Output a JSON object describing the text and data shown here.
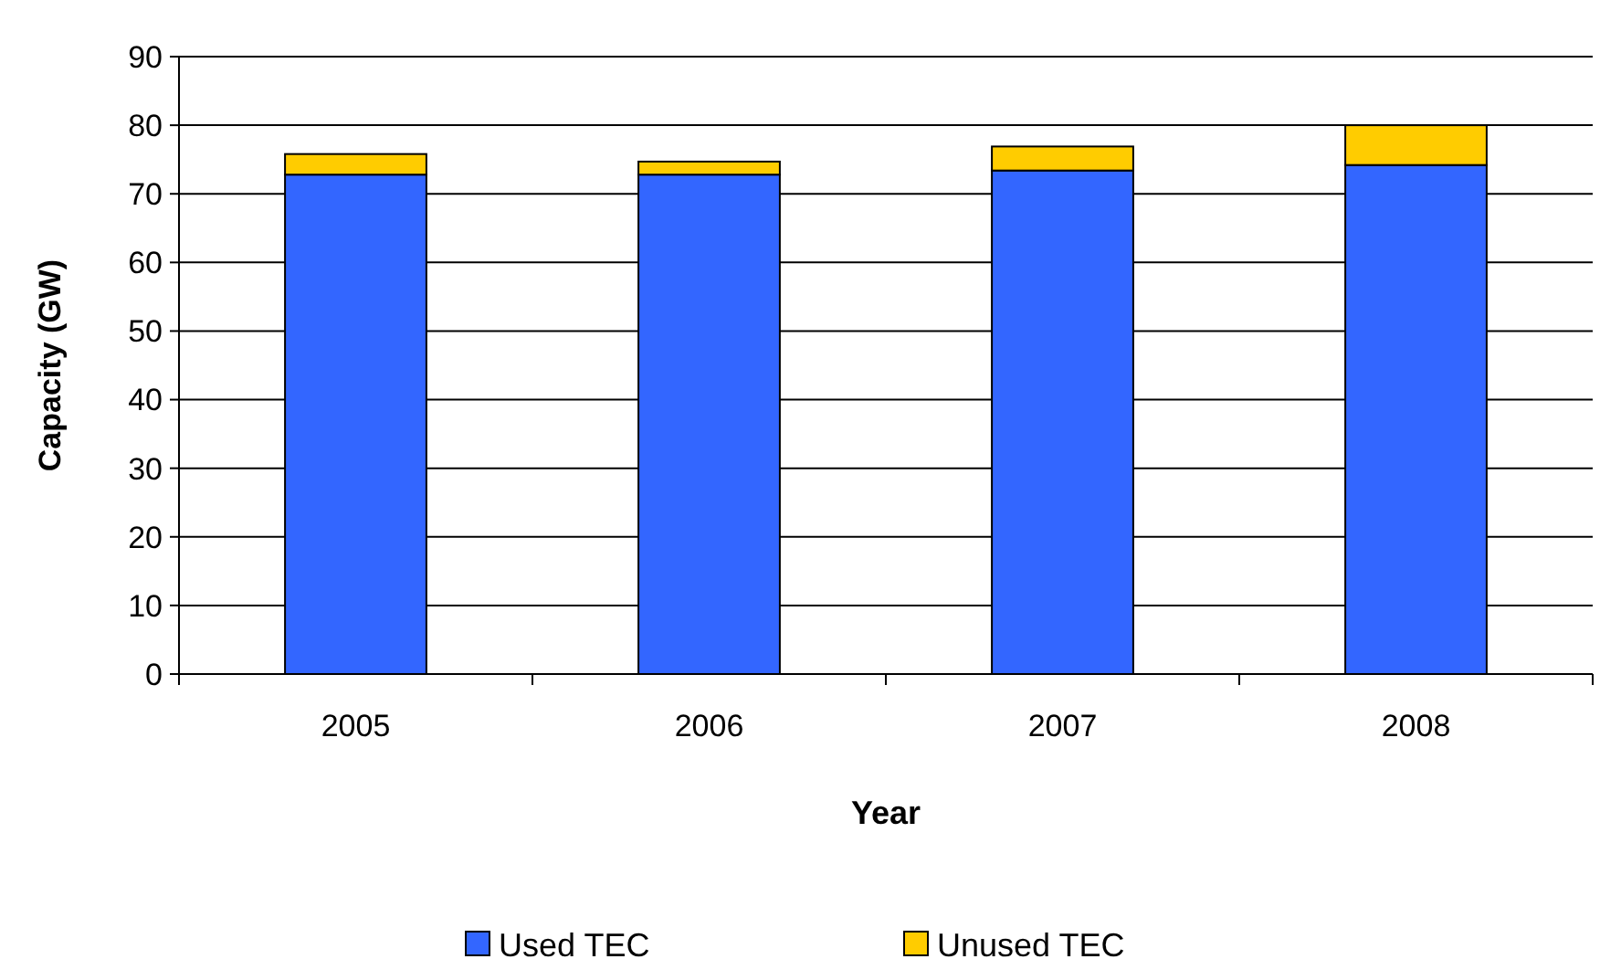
{
  "chart_data": {
    "type": "bar",
    "stacked": true,
    "xlabel": "Year",
    "ylabel": "Capacity (GW)",
    "categories": [
      "2005",
      "2006",
      "2007",
      "2008"
    ],
    "series": [
      {
        "name": "Used TEC",
        "color": "#3366ff",
        "values": [
          72.8,
          72.8,
          73.4,
          74.2
        ]
      },
      {
        "name": "Unused TEC",
        "color": "#ffcc00",
        "values": [
          3.0,
          1.9,
          3.5,
          5.8
        ]
      }
    ],
    "ylim": [
      0,
      90
    ],
    "yticks": [
      0,
      10,
      20,
      30,
      40,
      50,
      60,
      70,
      80,
      90
    ],
    "grid": "y",
    "legend": "bottom"
  }
}
